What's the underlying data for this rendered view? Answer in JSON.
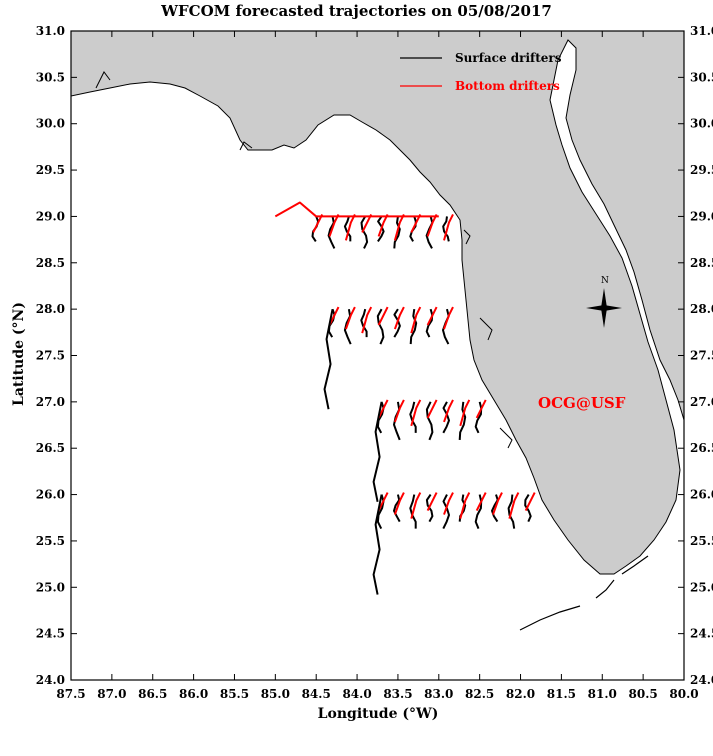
{
  "title": "WFCOM forecasted trajectories on 05/08/2017",
  "axes": {
    "xlabel": "Longitude (°W)",
    "ylabel": "Latitude (°N)",
    "x_ticks": [
      "87.5",
      "87.0",
      "86.5",
      "86.0",
      "85.5",
      "85.0",
      "84.5",
      "84.0",
      "83.5",
      "83.0",
      "82.5",
      "82.0",
      "81.5",
      "81.0",
      "80.5",
      "80.0"
    ],
    "y_ticks": [
      "31.0",
      "30.5",
      "30.0",
      "29.5",
      "29.0",
      "28.5",
      "28.0",
      "27.5",
      "27.0",
      "26.5",
      "26.0",
      "25.5",
      "25.0",
      "24.5",
      "24.0"
    ]
  },
  "legend": {
    "surface": {
      "label": "Surface drifters",
      "color": "#000000"
    },
    "bottom": {
      "label": "Bottom drifters",
      "color": "#ff0000"
    }
  },
  "credit": {
    "text": "OCG@USF",
    "color": "#ff0000"
  },
  "compass": {
    "north_label": "N"
  },
  "colors": {
    "land": "#cccccc",
    "water": "#ffffff",
    "coast": "#000000"
  },
  "chart_data": {
    "type": "map",
    "xlim": [
      87.5,
      80.0
    ],
    "ylim": [
      24.0,
      31.0
    ],
    "release_rows": [
      {
        "lat": 29.0,
        "lons": [
          84.5,
          84.3,
          84.1,
          83.9,
          83.7,
          83.5,
          83.3,
          83.1,
          82.9
        ]
      },
      {
        "lat": 28.0,
        "lons": [
          84.3,
          84.1,
          83.9,
          83.7,
          83.5,
          83.3,
          83.1,
          82.9
        ]
      },
      {
        "lat": 27.0,
        "lons": [
          83.7,
          83.5,
          83.3,
          83.1,
          82.9,
          82.7,
          82.5
        ]
      },
      {
        "lat": 26.0,
        "lons": [
          83.7,
          83.5,
          83.3,
          83.1,
          82.9,
          82.7,
          82.5,
          82.3,
          82.1,
          81.9
        ]
      }
    ]
  }
}
